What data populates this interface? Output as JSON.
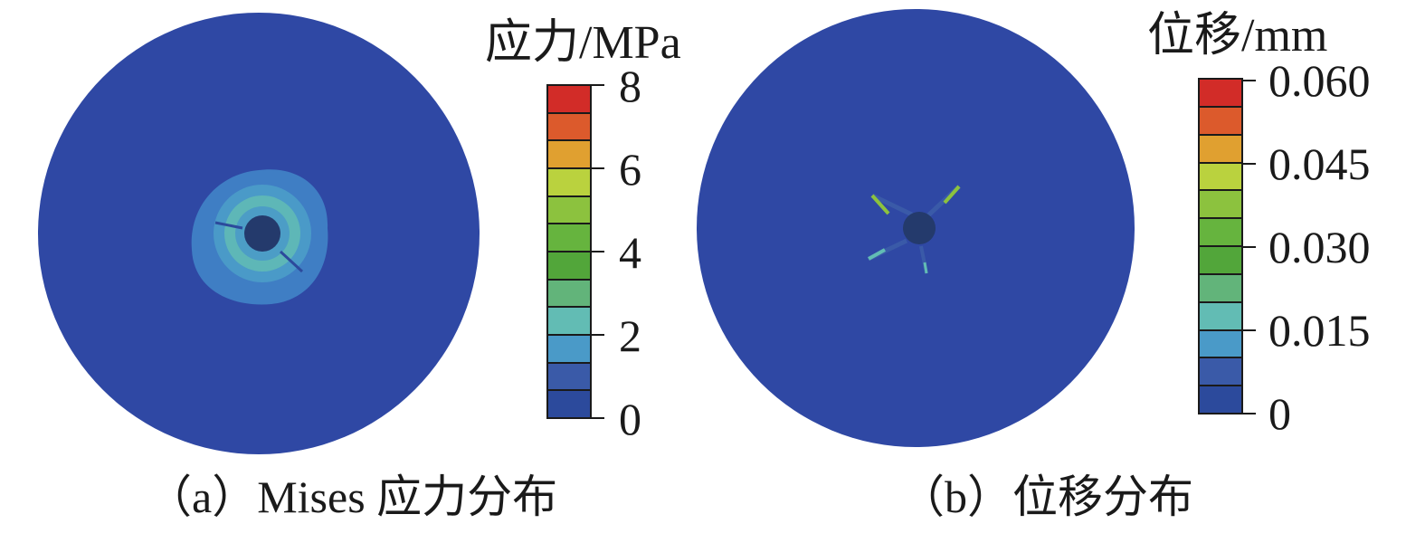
{
  "panels": [
    {
      "id": "a",
      "legend_title": "应力/MPa",
      "colorbar": {
        "colors": [
          "#2c4a9c",
          "#3a5aa8",
          "#4a9ac8",
          "#62bcb4",
          "#62b47a",
          "#52a63a",
          "#66b43e",
          "#8cc23e",
          "#bad23e",
          "#e0a030",
          "#dc5a2c",
          "#d22c28"
        ],
        "ticks": [
          "0",
          "2",
          "4",
          "6",
          "8"
        ]
      },
      "caption": "（a）Mises 应力分布"
    },
    {
      "id": "b",
      "legend_title": "位移/mm",
      "colorbar": {
        "colors": [
          "#2c4a9c",
          "#3a5aa8",
          "#4a9ac8",
          "#62bcb4",
          "#62b47a",
          "#52a63a",
          "#66b43e",
          "#8cc23e",
          "#bad23e",
          "#e0a030",
          "#dc5a2c",
          "#d22c28"
        ],
        "ticks": [
          "0",
          "0.015",
          "0.030",
          "0.045",
          "0.060"
        ]
      },
      "caption": "（b）位移分布"
    }
  ]
}
